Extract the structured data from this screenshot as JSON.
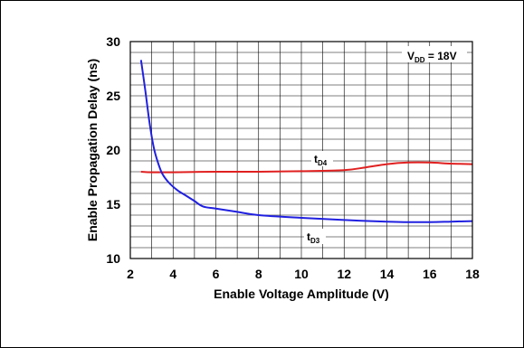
{
  "chart_data": {
    "type": "line",
    "xlabel": "Enable Voltage Amplitude (V)",
    "ylabel": "Enable Propagation Delay (ns)",
    "xlim": [
      2,
      18
    ],
    "ylim": [
      10,
      30
    ],
    "x_ticks": [
      "2",
      "4",
      "6",
      "8",
      "10",
      "12",
      "14",
      "16",
      "18"
    ],
    "y_ticks": [
      "10",
      "15",
      "20",
      "25",
      "30"
    ],
    "grid": true,
    "condition": {
      "main": "V",
      "sub": "DD",
      "rest": " = 18V"
    },
    "series": [
      {
        "name": "tD4",
        "label_main": "t",
        "label_sub": "D4",
        "color": "#e02020",
        "x": [
          2.5,
          3,
          4,
          6,
          8,
          10,
          12,
          13,
          14,
          15,
          16,
          17,
          18
        ],
        "y": [
          18.0,
          17.95,
          17.95,
          18.0,
          18.0,
          18.05,
          18.15,
          18.4,
          18.7,
          18.85,
          18.85,
          18.75,
          18.7
        ]
      },
      {
        "name": "tD3",
        "label_main": "t",
        "label_sub": "D3",
        "color": "#2020e0",
        "x": [
          2.5,
          2.7,
          2.9,
          3.1,
          3.3,
          3.5,
          3.8,
          4.2,
          4.6,
          5.0,
          5.4,
          6,
          7,
          8,
          10,
          12,
          14,
          15.5,
          17,
          18
        ],
        "y": [
          28.3,
          25.5,
          22.5,
          20.2,
          18.8,
          17.8,
          17.0,
          16.3,
          15.8,
          15.3,
          14.8,
          14.6,
          14.3,
          14.0,
          13.75,
          13.55,
          13.4,
          13.35,
          13.4,
          13.45
        ]
      }
    ]
  }
}
